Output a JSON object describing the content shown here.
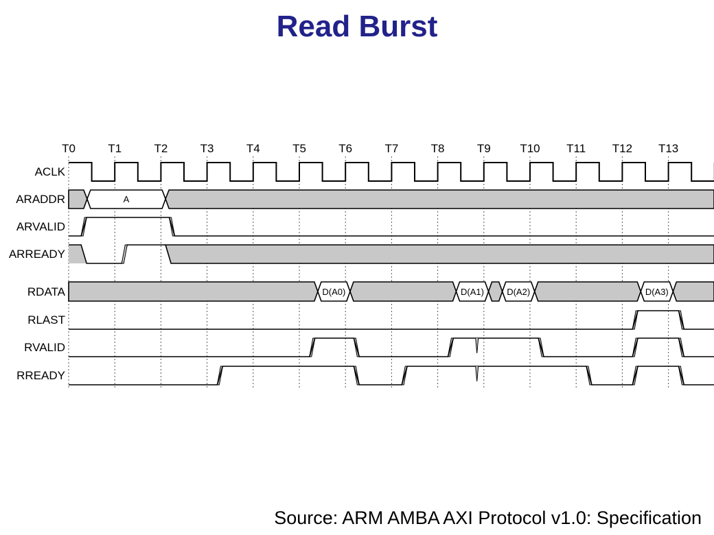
{
  "title": "Read Burst",
  "source": "Source: ARM AMBA AXI Protocol v1.0: Specification",
  "colors": {
    "title": "#22228a",
    "bus_fill": "#c8c8c8",
    "edge_fill": "#c8c8c8"
  },
  "ticks": [
    "T0",
    "T1",
    "T2",
    "T3",
    "T4",
    "T5",
    "T6",
    "T7",
    "T8",
    "T9",
    "T10",
    "T11",
    "T12",
    "T13"
  ],
  "signals": [
    {
      "name": "ACLK"
    },
    {
      "name": "ARADDR"
    },
    {
      "name": "ARVALID"
    },
    {
      "name": "ARREADY"
    },
    {
      "name": "RDATA"
    },
    {
      "name": "RLAST"
    },
    {
      "name": "RVALID"
    },
    {
      "name": "RREADY"
    }
  ],
  "bus_values": {
    "araddr": "A",
    "rdata": [
      "D(A0)",
      "D(A1)",
      "D(A2)",
      "D(A3)"
    ]
  }
}
